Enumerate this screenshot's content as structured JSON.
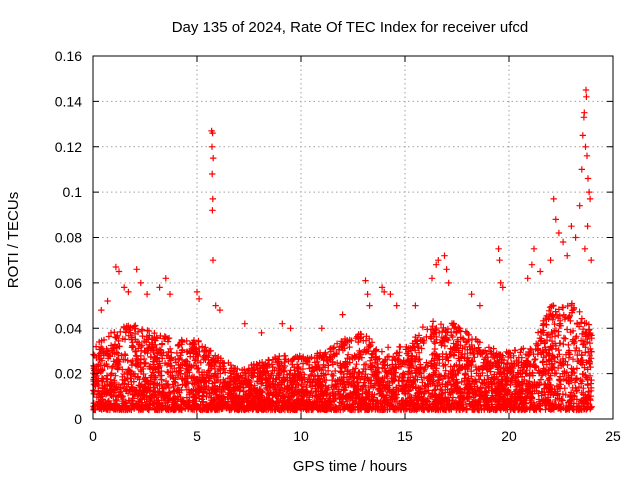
{
  "chart_data": {
    "type": "scatter",
    "title": "Day 135 of 2024, Rate Of TEC Index for receiver ufcd",
    "xlabel": "GPS time / hours",
    "ylabel": "ROTI / TECUs",
    "xlim": [
      0,
      25
    ],
    "ylim": [
      0,
      0.16
    ],
    "xticks": [
      0,
      5,
      10,
      15,
      20,
      25
    ],
    "xtick_labels": [
      "0",
      "5",
      "10",
      "15",
      "20",
      "25"
    ],
    "yticks": [
      0,
      0.02,
      0.04,
      0.06,
      0.08,
      0.1,
      0.12,
      0.14,
      0.16
    ],
    "ytick_labels": [
      "0",
      "0.02",
      "0.04",
      "0.06",
      "0.08",
      "0.1",
      "0.12",
      "0.14",
      "0.16"
    ],
    "grid": true,
    "marker": "+",
    "series": [
      {
        "name": "ROTI",
        "color": "#ff0000",
        "band_envelope": {
          "x": [
            0,
            1,
            2,
            3,
            4,
            5,
            6,
            7,
            8,
            9,
            10,
            11,
            12,
            13,
            14,
            15,
            16,
            17,
            18,
            19,
            20,
            21,
            22,
            23,
            24
          ],
          "typical_max": [
            0.032,
            0.04,
            0.042,
            0.038,
            0.035,
            0.035,
            0.028,
            0.022,
            0.025,
            0.028,
            0.028,
            0.03,
            0.035,
            0.038,
            0.032,
            0.032,
            0.042,
            0.045,
            0.038,
            0.032,
            0.03,
            0.032,
            0.05,
            0.052,
            0.04
          ]
        },
        "points": [
          {
            "x": 0.4,
            "y": 0.048
          },
          {
            "x": 0.7,
            "y": 0.052
          },
          {
            "x": 1.1,
            "y": 0.067
          },
          {
            "x": 1.25,
            "y": 0.065
          },
          {
            "x": 1.5,
            "y": 0.058
          },
          {
            "x": 1.7,
            "y": 0.056
          },
          {
            "x": 2.1,
            "y": 0.066
          },
          {
            "x": 2.3,
            "y": 0.06
          },
          {
            "x": 2.6,
            "y": 0.055
          },
          {
            "x": 3.2,
            "y": 0.058
          },
          {
            "x": 3.5,
            "y": 0.062
          },
          {
            "x": 3.7,
            "y": 0.055
          },
          {
            "x": 5.0,
            "y": 0.056
          },
          {
            "x": 5.1,
            "y": 0.053
          },
          {
            "x": 5.7,
            "y": 0.127
          },
          {
            "x": 5.75,
            "y": 0.126
          },
          {
            "x": 5.72,
            "y": 0.12
          },
          {
            "x": 5.78,
            "y": 0.115
          },
          {
            "x": 5.73,
            "y": 0.108
          },
          {
            "x": 5.76,
            "y": 0.097
          },
          {
            "x": 5.74,
            "y": 0.092
          },
          {
            "x": 5.77,
            "y": 0.07
          },
          {
            "x": 5.9,
            "y": 0.05
          },
          {
            "x": 6.1,
            "y": 0.048
          },
          {
            "x": 7.3,
            "y": 0.042
          },
          {
            "x": 8.1,
            "y": 0.038
          },
          {
            "x": 9.1,
            "y": 0.042
          },
          {
            "x": 9.5,
            "y": 0.04
          },
          {
            "x": 11.0,
            "y": 0.04
          },
          {
            "x": 12.0,
            "y": 0.046
          },
          {
            "x": 13.1,
            "y": 0.061
          },
          {
            "x": 13.2,
            "y": 0.055
          },
          {
            "x": 13.3,
            "y": 0.05
          },
          {
            "x": 13.9,
            "y": 0.058
          },
          {
            "x": 14.0,
            "y": 0.056
          },
          {
            "x": 14.3,
            "y": 0.055
          },
          {
            "x": 14.6,
            "y": 0.05
          },
          {
            "x": 15.5,
            "y": 0.05
          },
          {
            "x": 16.3,
            "y": 0.062
          },
          {
            "x": 16.5,
            "y": 0.068
          },
          {
            "x": 16.6,
            "y": 0.07
          },
          {
            "x": 16.9,
            "y": 0.072
          },
          {
            "x": 17.0,
            "y": 0.066
          },
          {
            "x": 17.1,
            "y": 0.06
          },
          {
            "x": 18.2,
            "y": 0.055
          },
          {
            "x": 18.6,
            "y": 0.05
          },
          {
            "x": 19.5,
            "y": 0.075
          },
          {
            "x": 19.55,
            "y": 0.07
          },
          {
            "x": 19.6,
            "y": 0.06
          },
          {
            "x": 19.7,
            "y": 0.058
          },
          {
            "x": 20.9,
            "y": 0.062
          },
          {
            "x": 21.1,
            "y": 0.068
          },
          {
            "x": 21.2,
            "y": 0.075
          },
          {
            "x": 21.5,
            "y": 0.065
          },
          {
            "x": 22.0,
            "y": 0.07
          },
          {
            "x": 22.15,
            "y": 0.097
          },
          {
            "x": 22.25,
            "y": 0.088
          },
          {
            "x": 22.4,
            "y": 0.082
          },
          {
            "x": 22.6,
            "y": 0.078
          },
          {
            "x": 22.8,
            "y": 0.072
          },
          {
            "x": 23.0,
            "y": 0.085
          },
          {
            "x": 23.2,
            "y": 0.08
          },
          {
            "x": 23.4,
            "y": 0.094
          },
          {
            "x": 23.5,
            "y": 0.11
          },
          {
            "x": 23.55,
            "y": 0.125
          },
          {
            "x": 23.6,
            "y": 0.133
          },
          {
            "x": 23.62,
            "y": 0.135
          },
          {
            "x": 23.7,
            "y": 0.145
          },
          {
            "x": 23.72,
            "y": 0.142
          },
          {
            "x": 23.68,
            "y": 0.12
          },
          {
            "x": 23.75,
            "y": 0.116
          },
          {
            "x": 23.8,
            "y": 0.106
          },
          {
            "x": 23.85,
            "y": 0.1
          },
          {
            "x": 23.9,
            "y": 0.097
          },
          {
            "x": 23.78,
            "y": 0.085
          },
          {
            "x": 23.95,
            "y": 0.07
          },
          {
            "x": 23.65,
            "y": 0.075
          }
        ]
      }
    ]
  }
}
